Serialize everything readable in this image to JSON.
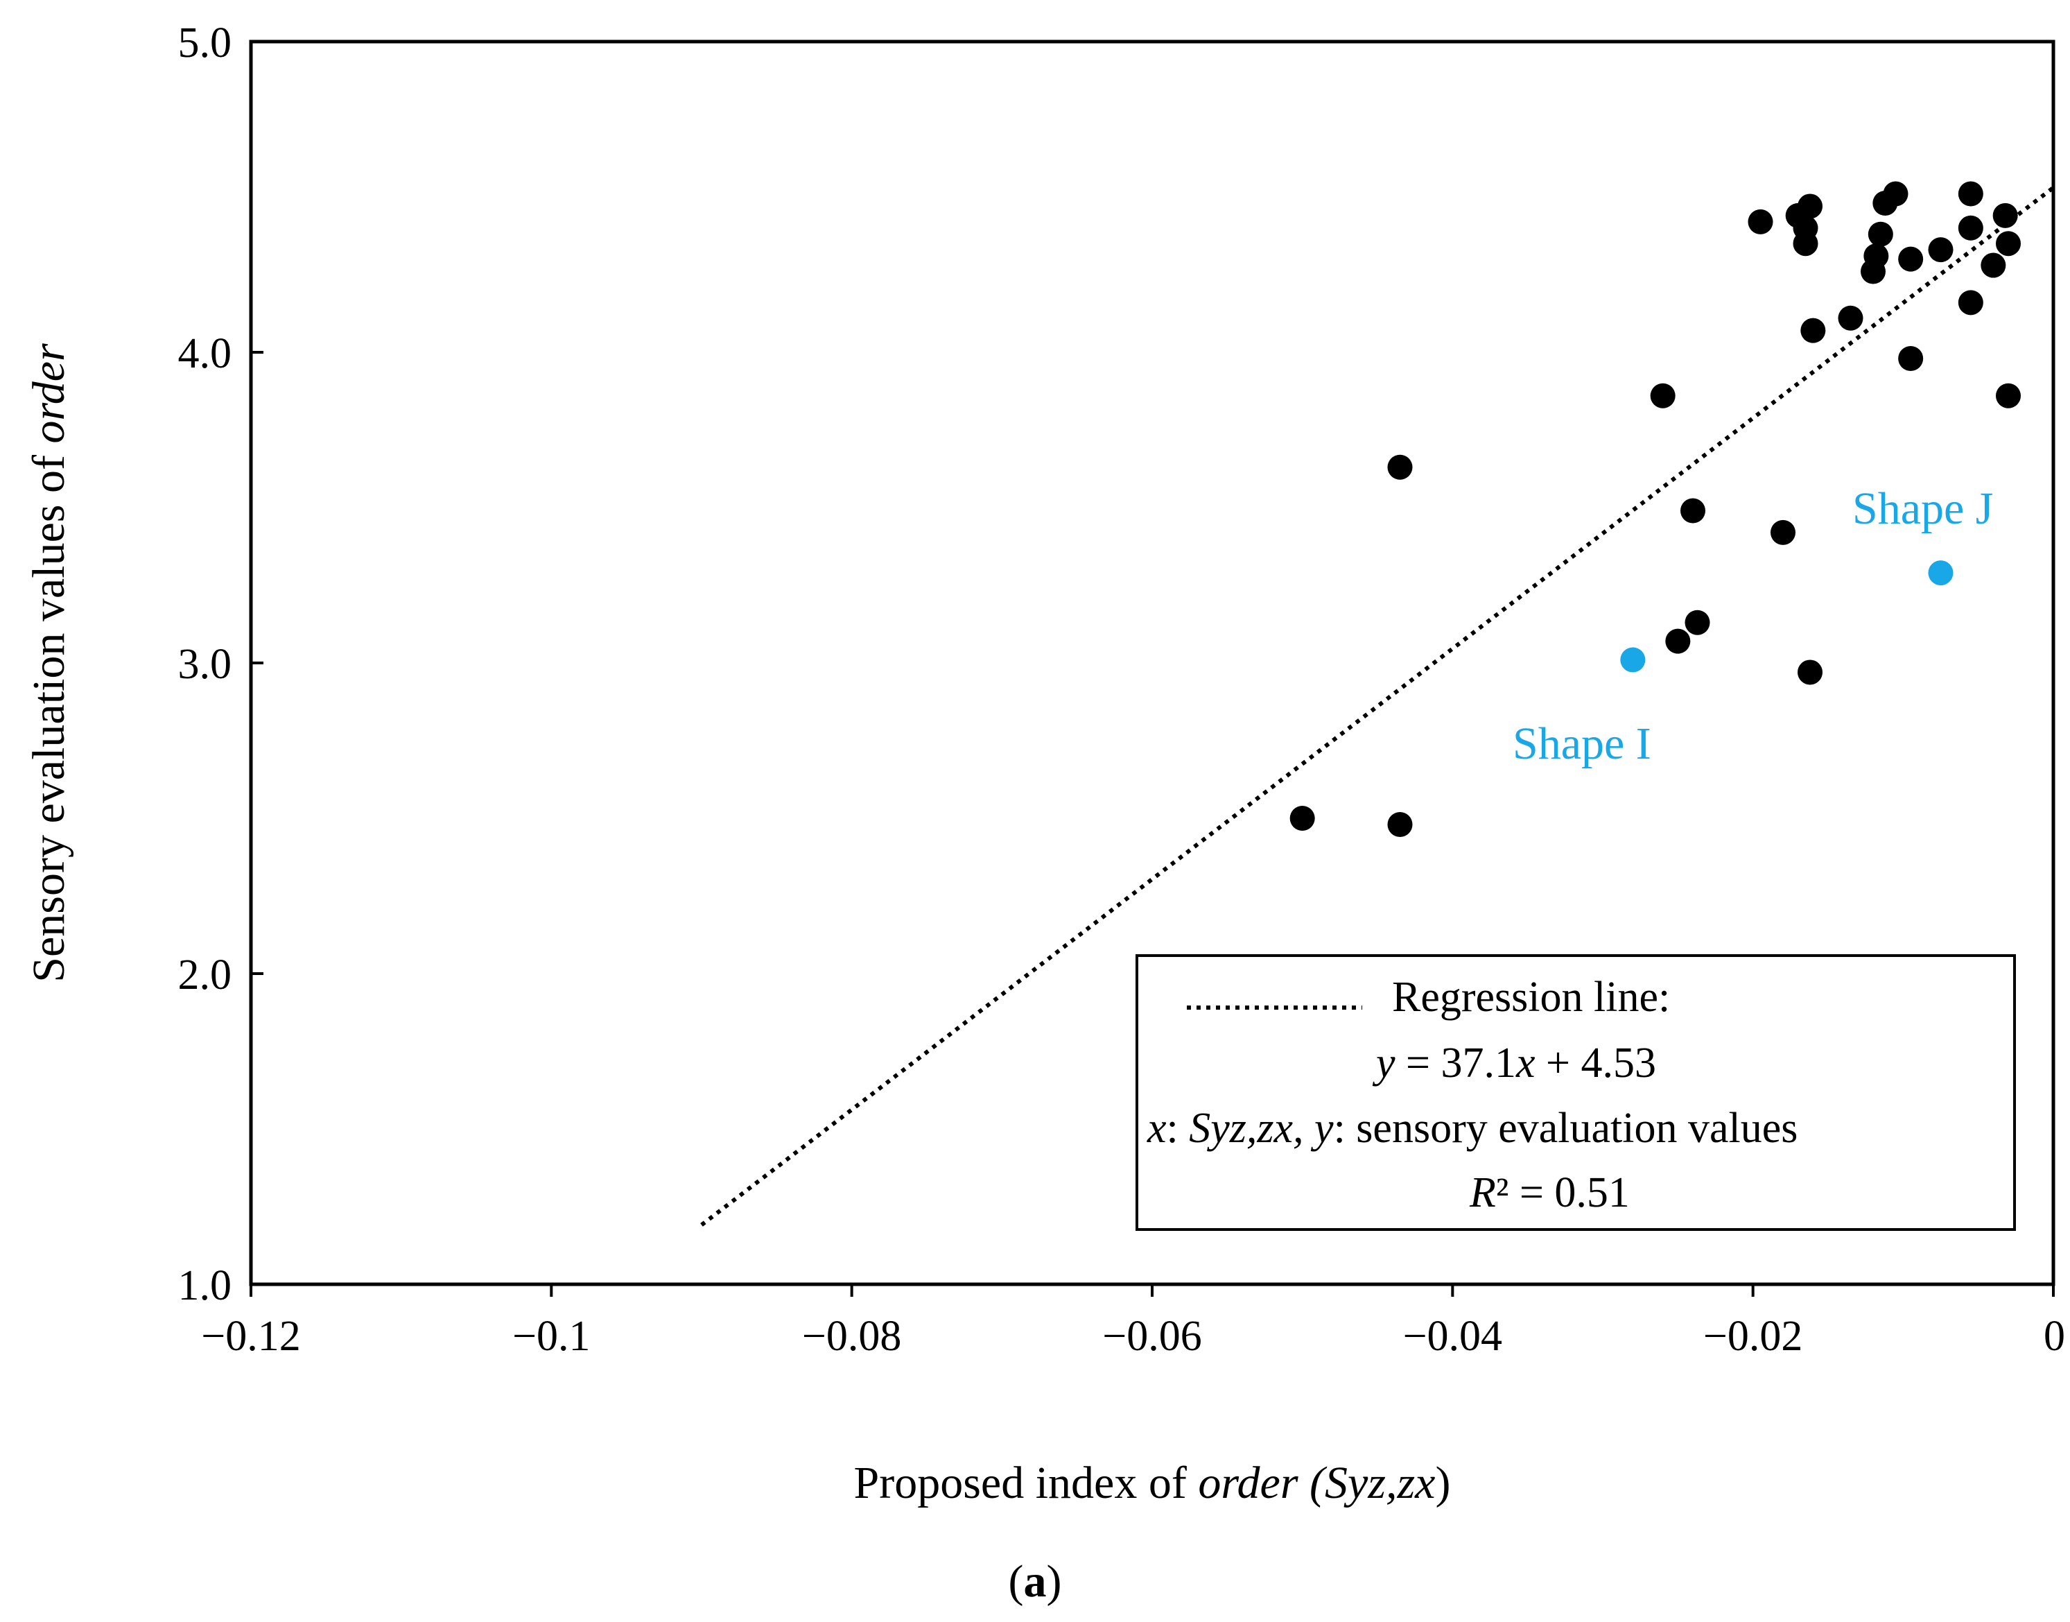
{
  "chart_data": {
    "type": "scatter",
    "xlabel": {
      "prefix": "Proposed index of ",
      "italic": "order (Syz,zx",
      "suffix": ")"
    },
    "ylabel": {
      "prefix": "Sensory evaluation values of ",
      "italic": "order"
    },
    "xlim": [
      -0.12,
      0
    ],
    "ylim": [
      1.0,
      5.0
    ],
    "x_ticks": [
      -0.12,
      -0.1,
      -0.08,
      -0.06,
      -0.04,
      -0.02,
      0
    ],
    "x_tick_labels": [
      "−0.12",
      "−0.1",
      "−0.08",
      "−0.06",
      "−0.04",
      "−0.02",
      "0"
    ],
    "y_ticks": [
      1.0,
      2.0,
      3.0,
      4.0,
      5.0
    ],
    "y_tick_labels": [
      "1.0",
      "2.0",
      "3.0",
      "4.0",
      "5.0"
    ],
    "grid": false,
    "legend_position": "bottom-right",
    "colors": {
      "points": "#000000",
      "highlight": "#1aa7e8",
      "line": "#000000"
    },
    "series": [
      {
        "color": "#000000",
        "points": [
          [
            -0.0195,
            4.42
          ],
          [
            -0.017,
            4.44
          ],
          [
            -0.0165,
            4.4
          ],
          [
            -0.0162,
            4.47
          ],
          [
            -0.0165,
            4.35
          ],
          [
            -0.016,
            4.07
          ],
          [
            -0.0135,
            4.11
          ],
          [
            -0.0112,
            4.48
          ],
          [
            -0.0105,
            4.51
          ],
          [
            -0.0115,
            4.38
          ],
          [
            -0.0118,
            4.31
          ],
          [
            -0.012,
            4.26
          ],
          [
            -0.0095,
            4.3
          ],
          [
            -0.0075,
            4.33
          ],
          [
            -0.0055,
            4.51
          ],
          [
            -0.0055,
            4.4
          ],
          [
            -0.0055,
            4.16
          ],
          [
            -0.004,
            4.28
          ],
          [
            -0.0032,
            4.44
          ],
          [
            -0.003,
            4.35
          ],
          [
            -0.003,
            3.86
          ],
          [
            -0.0095,
            3.98
          ],
          [
            -0.026,
            3.86
          ],
          [
            -0.0435,
            3.63
          ],
          [
            -0.024,
            3.49
          ],
          [
            -0.018,
            3.42
          ],
          [
            -0.0237,
            3.13
          ],
          [
            -0.025,
            3.07
          ],
          [
            -0.0162,
            2.97
          ],
          [
            -0.05,
            2.5
          ],
          [
            -0.0435,
            2.48
          ]
        ]
      },
      {
        "color": "#1aa7e8",
        "points": [
          [
            -0.028,
            3.01
          ],
          [
            -0.0075,
            3.29
          ]
        ]
      }
    ],
    "regression_line": {
      "slope": 37.1,
      "intercept": 4.53,
      "x_range": [
        -0.09,
        0
      ]
    },
    "legend": {
      "line1": "Regression line:",
      "line2": {
        "y": "y",
        "eq_mid": " = 37.1",
        "x": "x",
        "eq_end": " + 4.53"
      },
      "line3": {
        "x": "x",
        "colon1": ": ",
        "var": "Syz,zx, y",
        "rest": ": sensory evaluation values"
      },
      "line4": {
        "r": "R",
        "rest": "² = 0.51"
      }
    },
    "annotations": [
      {
        "text": "Shape I",
        "x": -0.028,
        "y": 3.01,
        "color": "#1aa7e8"
      },
      {
        "text": "Shape J",
        "x": -0.0075,
        "y": 3.29,
        "color": "#1aa7e8"
      }
    ],
    "caption": {
      "open": "(",
      "letter": "a",
      "close": ")"
    }
  }
}
